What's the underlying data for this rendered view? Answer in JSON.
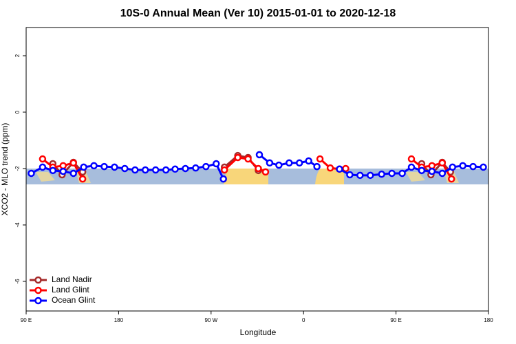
{
  "chart_data": {
    "type": "line",
    "title": "10S-0 Annual Mean (Ver 10)   2015-01-01 to 2020-12-18",
    "xlabel": "Longitude",
    "ylabel": "XCO2 - MLO trend (ppm)",
    "xlim": [
      90,
      540
    ],
    "ylim": [
      -7.05,
      3.0
    ],
    "xticks": [
      {
        "value": 90,
        "label": "90 E"
      },
      180,
      {
        "value": 270,
        "label": "90 W"
      },
      {
        "value": 360,
        "label": "0"
      },
      {
        "value": 450,
        "label": "90 E"
      },
      {
        "value": 540,
        "label": "180"
      }
    ],
    "yticks": [
      -6,
      -4,
      -2,
      0,
      2
    ],
    "legend": "bottom-left",
    "series": [
      {
        "name": "Land Nadir",
        "color": "#a52a2a",
        "x": [
          116,
          125,
          136,
          145,
          null,
          283,
          296,
          306,
          316,
          null,
          475,
          484,
          495,
          503
        ],
        "values": [
          -1.83,
          -2.22,
          -1.78,
          -2.12,
          null,
          -1.95,
          -1.54,
          -1.61,
          -2.07,
          null,
          -1.83,
          -2.22,
          -1.78,
          -2.12
        ]
      },
      {
        "name": "Land Glint",
        "color": "#ff0000",
        "x": [
          106,
          116,
          126,
          136,
          145,
          null,
          283,
          296,
          306,
          316,
          323,
          null,
          376,
          386,
          395,
          401,
          null,
          465,
          475,
          485,
          495,
          504
        ],
        "values": [
          -1.66,
          -1.95,
          -1.9,
          -1.8,
          -2.37,
          null,
          -2.05,
          -1.61,
          -1.66,
          -2.0,
          -2.12,
          null,
          -1.66,
          -1.98,
          -2.02,
          -2.0,
          null,
          -1.66,
          -1.95,
          -1.9,
          -1.8,
          -2.37
        ]
      },
      {
        "name": "Ocean Glint",
        "color": "#0000ff",
        "x": [
          95,
          106,
          116,
          126,
          136,
          146,
          156,
          166,
          176,
          186,
          196,
          206,
          216,
          226,
          235,
          245,
          255,
          265,
          275,
          282,
          null,
          317,
          327,
          336,
          346,
          356,
          365,
          373,
          null,
          395,
          405,
          415,
          425,
          436,
          446,
          456,
          465,
          475,
          485,
          495,
          505,
          515,
          525,
          535
        ],
        "values": [
          -2.17,
          -1.95,
          -2.07,
          -2.1,
          -2.17,
          -1.95,
          -1.9,
          -1.93,
          -1.95,
          -2.0,
          -2.05,
          -2.05,
          -2.05,
          -2.05,
          -2.02,
          -2.0,
          -1.98,
          -1.93,
          -1.83,
          -2.37,
          null,
          -1.51,
          -1.8,
          -1.88,
          -1.8,
          -1.8,
          -1.73,
          -1.93,
          null,
          -2.02,
          -2.22,
          -2.24,
          -2.24,
          -2.2,
          -2.17,
          -2.17,
          -1.95,
          -2.07,
          -2.1,
          -2.17,
          -1.95,
          -1.9,
          -1.93,
          -1.95
        ]
      }
    ]
  }
}
